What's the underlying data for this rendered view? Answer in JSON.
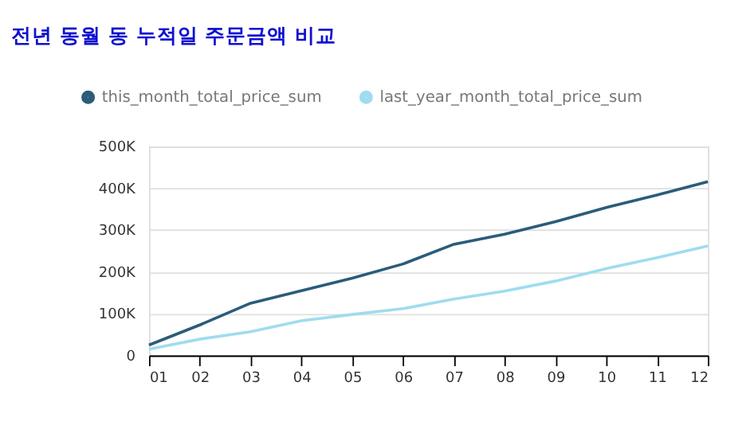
{
  "chart_data": {
    "type": "line",
    "title": "전년 동월 동 누적일 주문금액 비교",
    "categories": [
      "01",
      "02",
      "03",
      "04",
      "05",
      "06",
      "07",
      "08",
      "09",
      "10",
      "11",
      "12"
    ],
    "series": [
      {
        "name": "this_month_total_price_sum",
        "color": "#2b5c7a",
        "values": [
          25000,
          73000,
          125000,
          155000,
          185000,
          219000,
          266000,
          290000,
          320000,
          354000,
          384000,
          416000
        ]
      },
      {
        "name": "last_year_month_total_price_sum",
        "color": "#9fdcf0",
        "values": [
          15000,
          39000,
          57000,
          83000,
          98000,
          112000,
          135000,
          154000,
          178000,
          208000,
          234000,
          262000
        ]
      }
    ],
    "ylim": [
      0,
      500000
    ],
    "yticks": [
      0,
      {
        "value": 100000,
        "label": "100K"
      },
      {
        "value": 200000,
        "label": "200K"
      },
      {
        "value": 300000,
        "label": "300K"
      },
      {
        "value": 400000,
        "label": "400K"
      },
      {
        "value": 500000,
        "label": "500K"
      }
    ],
    "grid": "y",
    "legend": "top left",
    "marker": "none",
    "line_style": "solid"
  }
}
